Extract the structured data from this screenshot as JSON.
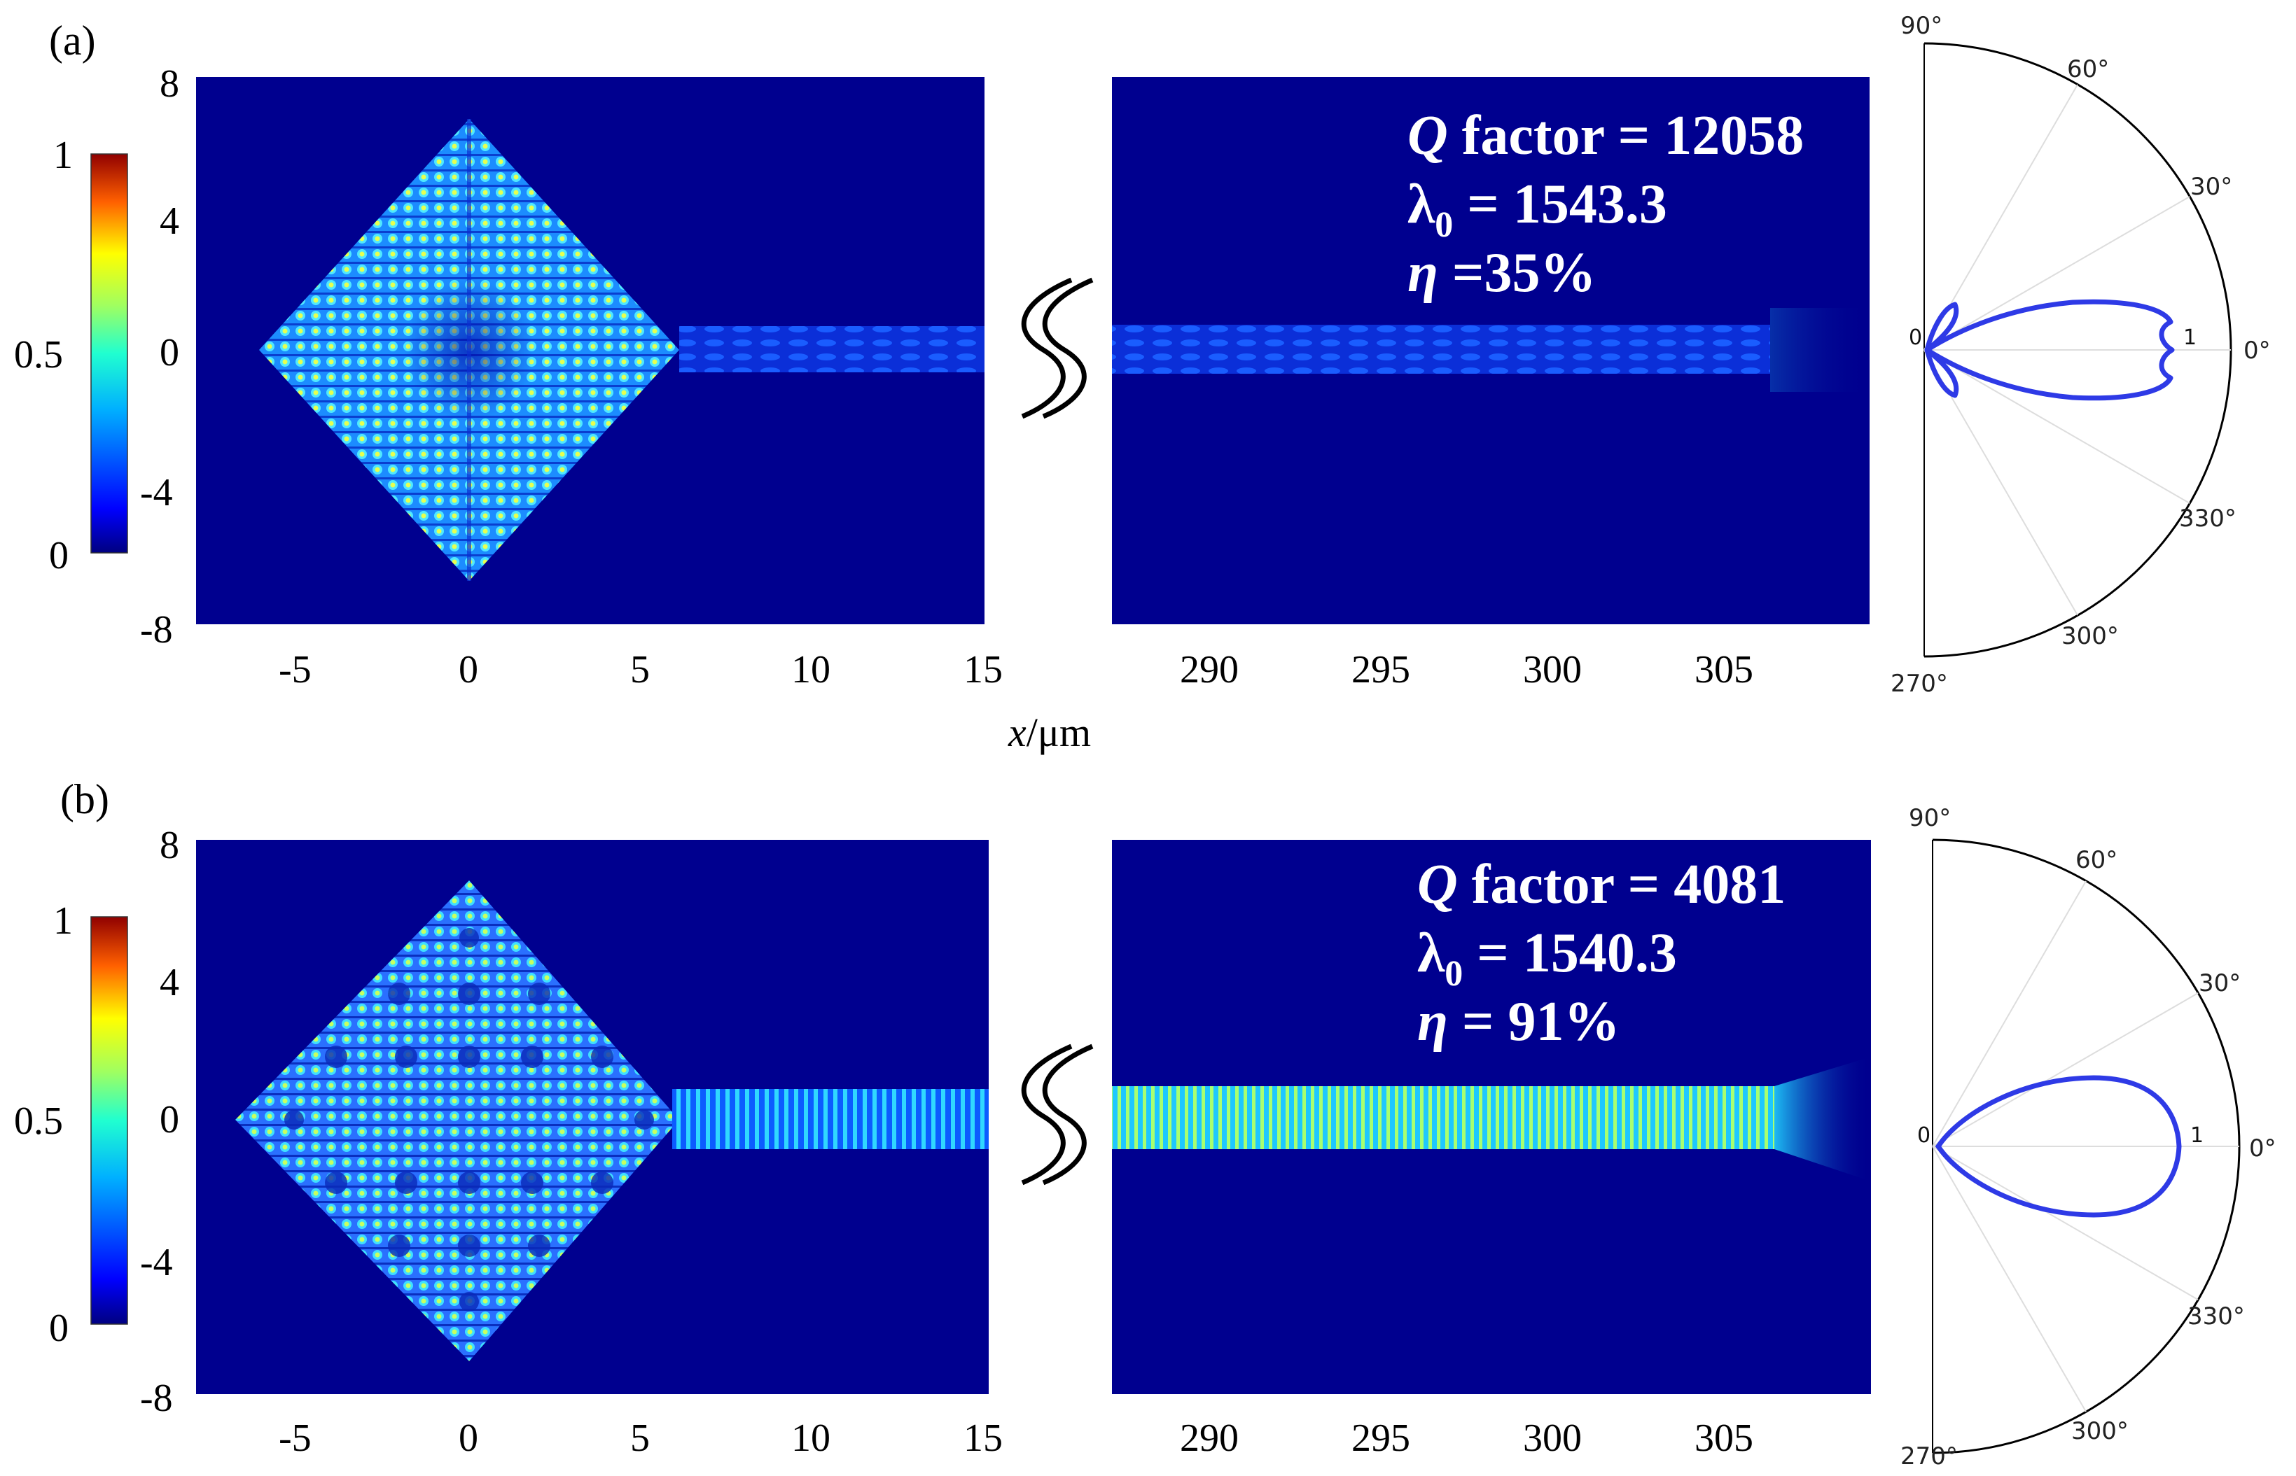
{
  "colors": {
    "bg_field": "#00008f",
    "polar_curve": "#2e3ae6",
    "break_mark": "#000000"
  },
  "colorbar": {
    "ticks": [
      "1",
      "0.5",
      "0"
    ],
    "stops": [
      "#000080",
      "#0000ff",
      "#0080ff",
      "#00ffff",
      "#80ff80",
      "#ffff00",
      "#ff8000",
      "#ff0000",
      "#800000"
    ]
  },
  "xaxis_label": {
    "var": "x",
    "unit": "/μm"
  },
  "panels": [
    {
      "label": "(a)",
      "y_ticks": [
        "8",
        "4",
        "0",
        "-4",
        "-8"
      ],
      "x_ticks_left": [
        "-5",
        "0",
        "5",
        "10",
        "15"
      ],
      "x_ticks_right": [
        "290",
        "295",
        "300",
        "305"
      ],
      "annotation": {
        "q_var": "Q",
        "q_text": " factor = 12058",
        "lambda_sym": "λ",
        "lambda_sub": "0",
        "lambda_text": " = 1543.3",
        "eta_var": "η",
        "eta_text": " =35%"
      },
      "polar": {
        "angle_labels": [
          "90°",
          "60°",
          "30°",
          "0°",
          "330°",
          "300°",
          "270°"
        ],
        "r_labels": [
          "0",
          "1"
        ]
      },
      "field_pattern": "split-lobe"
    },
    {
      "label": "(b)",
      "y_ticks": [
        "8",
        "4",
        "0",
        "-4",
        "-8"
      ],
      "x_ticks_left": [
        "-5",
        "0",
        "5",
        "10",
        "15"
      ],
      "x_ticks_right": [
        "290",
        "295",
        "300",
        "305"
      ],
      "annotation": {
        "q_var": "Q",
        "q_text": " factor = 4081",
        "lambda_sym": "λ",
        "lambda_sub": "0",
        "lambda_text": " = 1540.3",
        "eta_var": "η",
        "eta_text": " = 91%"
      },
      "polar": {
        "angle_labels": [
          "90°",
          "60°",
          "30°",
          "0°",
          "330°",
          "300°",
          "270°"
        ],
        "r_labels": [
          "0",
          "1"
        ]
      },
      "field_pattern": "single-lobe"
    }
  ]
}
